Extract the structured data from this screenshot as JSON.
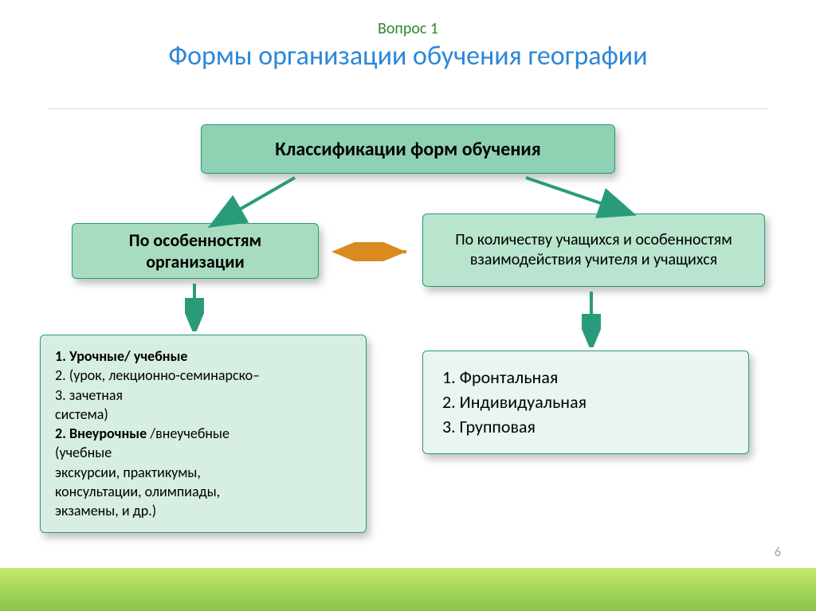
{
  "header": {
    "question_label": "Вопрос 1",
    "title": "Формы организации обучения географии"
  },
  "diagram": {
    "top_box": {
      "text": "Классификации форм обучения",
      "bg": "#8fd1b3"
    },
    "left_box": {
      "text": "По особенностям организации",
      "bg": "#a8dcc0"
    },
    "right_box": {
      "text": "По количеству учащихся и особенностям взаимодействия учителя и учащихся",
      "bg": "#b9e4ce"
    },
    "bottom_left_box": {
      "bg": "#d7eee3",
      "lines": [
        {
          "t": "1.  Урочные/ учебные",
          "b": true
        },
        {
          "t": "2.   (урок, лекционно-семинарско–",
          "b": false
        },
        {
          "t": "3.   зачетная",
          "b": false
        },
        {
          "t": "система)",
          "b": false
        },
        {
          "t": "2. Внеурочные /внеучебные",
          "b": true,
          "trail": ""
        },
        {
          "t": "(учебные",
          "b": false
        },
        {
          "t": "экскурсии, практикумы,",
          "b": false
        },
        {
          "t": " консультации, олимпиады,",
          "b": false
        },
        {
          "t": "экзамены, и др.)",
          "b": false
        }
      ]
    },
    "bottom_right_box": {
      "bg": "#eaf5ef",
      "items": [
        "Фронтальная",
        "Индивидуальная",
        "Групповая"
      ]
    },
    "arrows": {
      "teal": "#2a9b7a",
      "orange": "#d98b1f"
    }
  },
  "page_number": "6"
}
